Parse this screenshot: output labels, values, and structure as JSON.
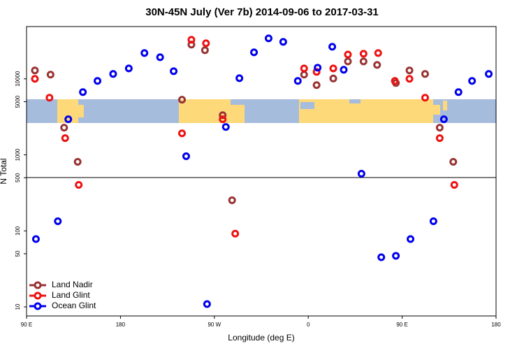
{
  "chart_data": {
    "type": "scatter",
    "title": "30N-45N July (Ver 7b)   2014-09-06 to 2017-03-31",
    "x_label": "Longitude (deg E)",
    "y_label": "N Total",
    "log_y": true,
    "legend": "bottom-left",
    "xlim": [
      90,
      540
    ],
    "ylim": [
      7.6,
      48700
    ],
    "xticks": [
      {
        "value": 90,
        "label": "90 E"
      },
      {
        "value": 180,
        "label": "180"
      },
      {
        "value": 270,
        "label": "90 W"
      },
      {
        "value": 360,
        "label": "0"
      },
      {
        "value": 450,
        "label": "90 E"
      },
      {
        "value": 540,
        "label": "180"
      }
    ],
    "yticks": [
      10,
      50,
      100,
      500,
      1000,
      5000,
      10000
    ],
    "series": [
      {
        "name": "Land Nadir",
        "color": "#993333",
        "x": [
          98,
          113,
          126,
          139,
          239,
          248,
          261,
          278,
          287,
          356,
          368,
          384,
          398,
          413,
          426,
          444,
          457,
          472,
          486,
          499
        ],
        "values": [
          12900,
          11350,
          2280,
          810,
          5310,
          28200,
          23800,
          3330,
          253,
          11350,
          8270,
          10100,
          16950,
          16950,
          15250,
          8810,
          12900,
          11590,
          2280,
          810
        ]
      },
      {
        "name": "Land Glint",
        "color": "#ee1111",
        "x": [
          98,
          112,
          127,
          140,
          239,
          248,
          262,
          278,
          290,
          356,
          368,
          384,
          398,
          413,
          427,
          443,
          457,
          472,
          486,
          500
        ],
        "values": [
          10000,
          5650,
          1660,
          403,
          1920,
          32650,
          29400,
          2940,
          92,
          13700,
          12350,
          13700,
          20900,
          21400,
          21830,
          9380,
          10000,
          5650,
          1660,
          403
        ]
      },
      {
        "name": "Ocean Glint",
        "color": "#0000ee",
        "x": [
          99,
          120,
          130,
          144,
          158,
          173,
          188,
          203,
          218,
          231,
          243,
          263,
          281,
          294,
          308,
          322,
          336,
          350,
          369,
          383,
          394,
          411,
          430,
          444,
          458,
          480,
          490,
          504,
          517,
          533
        ],
        "values": [
          78,
          134,
          2940,
          6690,
          9380,
          11590,
          13700,
          21830,
          19230,
          12610,
          959,
          10.9,
          2330,
          10200,
          22320,
          34040,
          30650,
          9380,
          14020,
          26420,
          13160,
          565,
          45,
          47,
          78,
          134,
          2940,
          6690,
          9380,
          11590
        ]
      }
    ]
  }
}
